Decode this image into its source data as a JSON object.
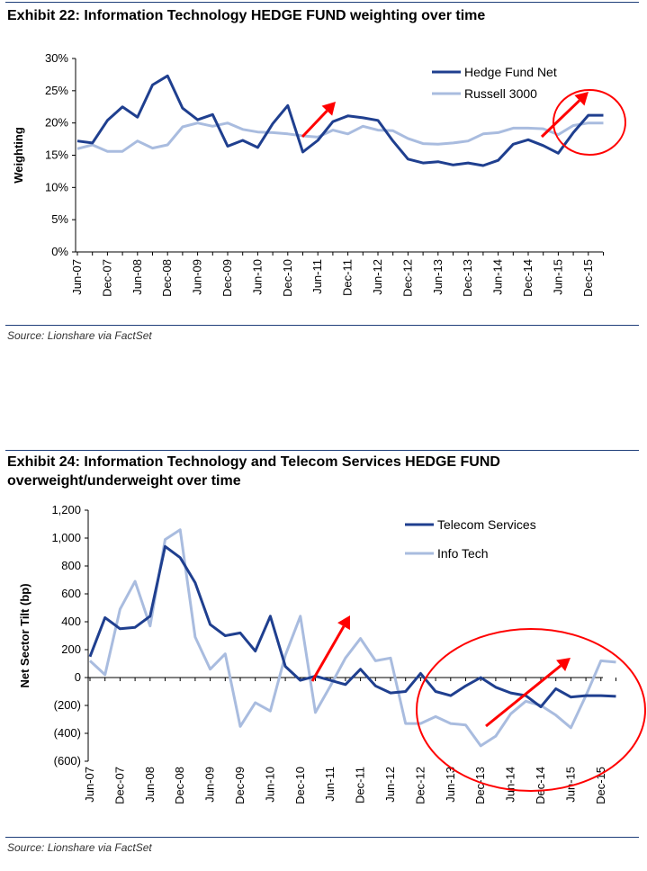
{
  "exhibit22": {
    "title": "Exhibit 22: Information Technology HEDGE FUND weighting over time",
    "source": "Source: Lionshare via FactSet"
  },
  "exhibit24": {
    "title_line1": "Exhibit 24: Information Technology and Telecom Services HEDGE FUND",
    "title_line2": "overweight/underweight over time",
    "source": "Source: Lionshare via FactSet"
  },
  "chart_data": [
    {
      "type": "line",
      "title": "Exhibit 22: Information Technology HEDGE FUND weighting over time",
      "xlabel": "",
      "ylabel": "Weighting",
      "ylim": [
        0,
        30
      ],
      "yticks": [
        "0%",
        "5%",
        "10%",
        "15%",
        "20%",
        "25%",
        "30%"
      ],
      "xtick_labels": [
        "Jun-07",
        "Dec-07",
        "Jun-08",
        "Dec-08",
        "Jun-09",
        "Dec-09",
        "Jun-10",
        "Dec-10",
        "Jun-11",
        "Dec-11",
        "Jun-12",
        "Dec-12",
        "Jun-13",
        "Dec-13",
        "Jun-14",
        "Dec-14",
        "Jun-15",
        "Dec-15"
      ],
      "legend_position": "top-right",
      "grid": false,
      "x_points": [
        "Jun-07",
        "Sep-07",
        "Dec-07",
        "Mar-08",
        "Jun-08",
        "Sep-08",
        "Dec-08",
        "Mar-09",
        "Jun-09",
        "Sep-09",
        "Dec-09",
        "Mar-10",
        "Jun-10",
        "Sep-10",
        "Dec-10",
        "Mar-11",
        "Jun-11",
        "Sep-11",
        "Dec-11",
        "Mar-12",
        "Jun-12",
        "Sep-12",
        "Dec-12",
        "Mar-13",
        "Jun-13",
        "Sep-13",
        "Dec-13",
        "Mar-14",
        "Jun-14",
        "Sep-14",
        "Dec-14",
        "Mar-15",
        "Jun-15",
        "Sep-15",
        "Dec-15",
        "Mar-16"
      ],
      "series": [
        {
          "name": "Hedge Fund Net",
          "color": "#1f3f8f",
          "values": [
            17.2,
            16.9,
            20.4,
            22.5,
            20.9,
            25.9,
            27.3,
            22.3,
            20.5,
            21.3,
            16.4,
            17.3,
            16.2,
            19.9,
            22.7,
            15.5,
            17.3,
            20.2,
            21.1,
            20.8,
            20.4,
            17.2,
            14.4,
            13.8,
            14.0,
            13.5,
            13.8,
            13.4,
            14.2,
            16.7,
            17.4,
            16.5,
            15.3,
            18.5,
            21.2,
            21.2
          ]
        },
        {
          "name": "Russell 3000",
          "color": "#a9bcdf",
          "values": [
            16.0,
            16.6,
            15.6,
            15.6,
            17.2,
            16.1,
            16.6,
            19.4,
            20.0,
            19.5,
            20.0,
            19.0,
            18.6,
            18.5,
            18.3,
            18.0,
            17.8,
            18.9,
            18.3,
            19.5,
            18.9,
            18.8,
            17.6,
            16.8,
            16.7,
            16.9,
            17.2,
            18.3,
            18.5,
            19.2,
            19.2,
            19.1,
            18.2,
            19.6,
            20.0,
            20.0
          ]
        }
      ]
    },
    {
      "type": "line",
      "title": "Exhibit 24: Information Technology and Telecom Services HEDGE FUND overweight/underweight over time",
      "xlabel": "",
      "ylabel": "Net Sector Tilt (bp)",
      "ylim": [
        -600,
        1200
      ],
      "yticks": [
        "(600)",
        "(400)",
        "(200)",
        "0",
        "200",
        "400",
        "600",
        "800",
        "1,000",
        "1,200"
      ],
      "xtick_labels": [
        "Jun-07",
        "Dec-07",
        "Jun-08",
        "Dec-08",
        "Jun-09",
        "Dec-09",
        "Jun-10",
        "Dec-10",
        "Jun-11",
        "Dec-11",
        "Jun-12",
        "Dec-12",
        "Jun-13",
        "Dec-13",
        "Jun-14",
        "Dec-14",
        "Jun-15",
        "Dec-15"
      ],
      "legend_position": "top-right",
      "grid": false,
      "x_points": [
        "Jun-07",
        "Sep-07",
        "Dec-07",
        "Mar-08",
        "Jun-08",
        "Sep-08",
        "Dec-08",
        "Mar-09",
        "Jun-09",
        "Sep-09",
        "Dec-09",
        "Mar-10",
        "Jun-10",
        "Sep-10",
        "Dec-10",
        "Mar-11",
        "Jun-11",
        "Sep-11",
        "Dec-11",
        "Mar-12",
        "Jun-12",
        "Sep-12",
        "Dec-12",
        "Mar-13",
        "Jun-13",
        "Sep-13",
        "Dec-13",
        "Mar-14",
        "Jun-14",
        "Sep-14",
        "Dec-14",
        "Mar-15",
        "Jun-15",
        "Sep-15",
        "Dec-15",
        "Mar-16"
      ],
      "series": [
        {
          "name": "Telecom Services",
          "color": "#1f3f8f",
          "values": [
            150,
            430,
            350,
            360,
            440,
            940,
            860,
            680,
            380,
            300,
            320,
            190,
            440,
            80,
            -20,
            10,
            -20,
            -50,
            60,
            -60,
            -110,
            -100,
            30,
            -100,
            -130,
            -60,
            0,
            -70,
            -110,
            -130,
            -210,
            -80,
            -140,
            -130,
            -130,
            -135
          ]
        },
        {
          "name": "Info Tech",
          "color": "#a9bcdf",
          "values": [
            120,
            20,
            490,
            690,
            370,
            990,
            1060,
            290,
            60,
            170,
            -350,
            -180,
            -240,
            160,
            440,
            -250,
            -60,
            140,
            280,
            120,
            140,
            -330,
            -330,
            -280,
            -330,
            -340,
            -490,
            -420,
            -260,
            -170,
            -200,
            -270,
            -360,
            -130,
            120,
            110
          ]
        }
      ]
    }
  ]
}
